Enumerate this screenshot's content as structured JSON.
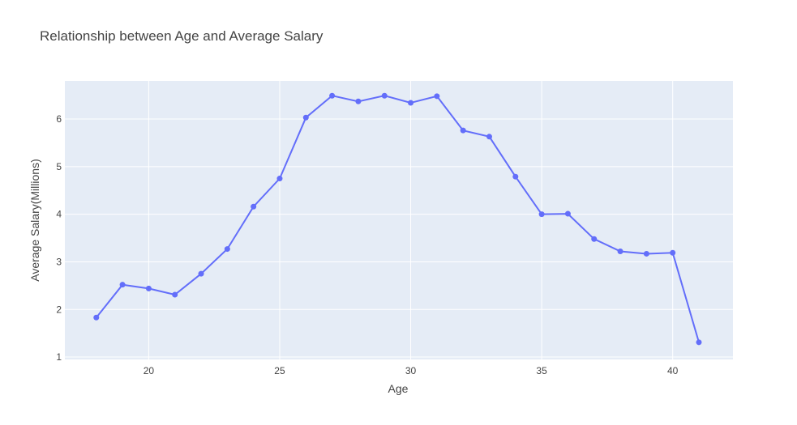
{
  "chart_data": {
    "type": "line",
    "title": "Relationship between Age and Average Salary",
    "xlabel": "Age",
    "ylabel": "Average Salary(Millions)",
    "xlim": [
      16.8,
      42.3
    ],
    "ylim": [
      0.95,
      6.8
    ],
    "xticks": [
      20,
      25,
      30,
      35,
      40
    ],
    "yticks": [
      1,
      2,
      3,
      4,
      5,
      6
    ],
    "grid": true,
    "colors": {
      "line": "#636efa",
      "plot_bg": "#e5ecf6",
      "grid": "#ffffff"
    },
    "x": [
      18,
      19,
      20,
      21,
      22,
      23,
      24,
      25,
      26,
      27,
      28,
      29,
      30,
      31,
      32,
      33,
      34,
      35,
      36,
      37,
      38,
      39,
      40,
      41
    ],
    "y": [
      1.83,
      2.52,
      2.44,
      2.31,
      2.75,
      3.27,
      4.16,
      4.75,
      6.03,
      6.49,
      6.37,
      6.49,
      6.34,
      6.48,
      5.76,
      5.63,
      4.79,
      4.0,
      4.01,
      3.48,
      3.22,
      3.17,
      3.19,
      1.31
    ]
  }
}
